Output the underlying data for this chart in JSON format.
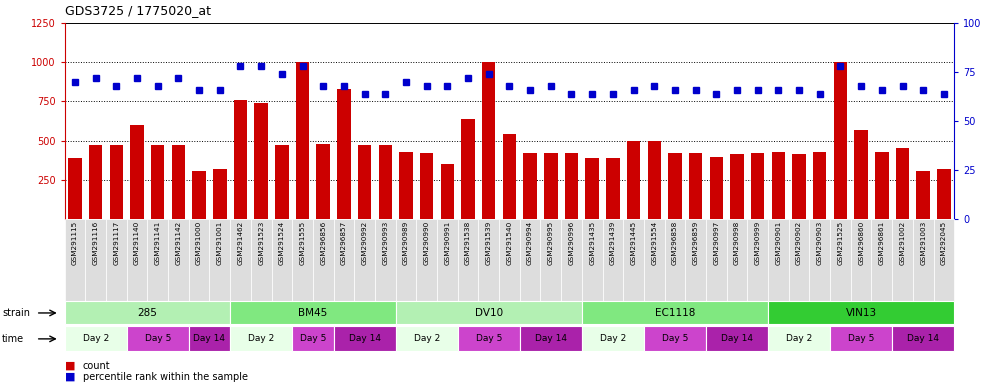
{
  "title": "GDS3725 / 1775020_at",
  "samples": [
    "GSM291115",
    "GSM291116",
    "GSM291117",
    "GSM291140",
    "GSM291141",
    "GSM291142",
    "GSM291000",
    "GSM291001",
    "GSM291462",
    "GSM291523",
    "GSM291524",
    "GSM291555",
    "GSM296856",
    "GSM296857",
    "GSM290992",
    "GSM290993",
    "GSM290989",
    "GSM290990",
    "GSM290991",
    "GSM291538",
    "GSM291539",
    "GSM291540",
    "GSM290994",
    "GSM290995",
    "GSM290996",
    "GSM291435",
    "GSM291439",
    "GSM291445",
    "GSM291554",
    "GSM296858",
    "GSM296859",
    "GSM290997",
    "GSM290998",
    "GSM290999",
    "GSM290901",
    "GSM290902",
    "GSM290903",
    "GSM291525",
    "GSM296860",
    "GSM296861",
    "GSM291002",
    "GSM291003",
    "GSM292045"
  ],
  "bar_values": [
    390,
    470,
    470,
    600,
    470,
    470,
    305,
    320,
    760,
    740,
    470,
    1000,
    480,
    830,
    470,
    470,
    430,
    420,
    350,
    640,
    1000,
    540,
    420,
    420,
    420,
    390,
    390,
    500,
    500,
    420,
    420,
    395,
    415,
    420,
    430,
    415,
    425,
    1000,
    570,
    430,
    455,
    305,
    320
  ],
  "dot_values": [
    70,
    72,
    68,
    72,
    68,
    72,
    66,
    66,
    78,
    78,
    74,
    78,
    68,
    68,
    64,
    64,
    70,
    68,
    68,
    72,
    74,
    68,
    66,
    68,
    64,
    64,
    64,
    66,
    68,
    66,
    66,
    64,
    66,
    66,
    66,
    66,
    64,
    78,
    68,
    66,
    68,
    66,
    64
  ],
  "strains": [
    {
      "label": "285",
      "start": 0,
      "end": 8,
      "color": "#b3f0b3"
    },
    {
      "label": "BM45",
      "start": 8,
      "end": 16,
      "color": "#80e880"
    },
    {
      "label": "DV10",
      "start": 16,
      "end": 25,
      "color": "#b3f0b3"
    },
    {
      "label": "EC1118",
      "start": 25,
      "end": 34,
      "color": "#80e880"
    },
    {
      "label": "VIN13",
      "start": 34,
      "end": 43,
      "color": "#33cc33"
    }
  ],
  "times": [
    {
      "label": "Day 2",
      "start": 0,
      "end": 3,
      "color": "#e8ffe8"
    },
    {
      "label": "Day 5",
      "start": 3,
      "end": 6,
      "color": "#cc44cc"
    },
    {
      "label": "Day 14",
      "start": 6,
      "end": 8,
      "color": "#aa22aa"
    },
    {
      "label": "Day 2",
      "start": 8,
      "end": 11,
      "color": "#e8ffe8"
    },
    {
      "label": "Day 5",
      "start": 11,
      "end": 13,
      "color": "#cc44cc"
    },
    {
      "label": "Day 14",
      "start": 13,
      "end": 16,
      "color": "#aa22aa"
    },
    {
      "label": "Day 2",
      "start": 16,
      "end": 19,
      "color": "#e8ffe8"
    },
    {
      "label": "Day 5",
      "start": 19,
      "end": 22,
      "color": "#cc44cc"
    },
    {
      "label": "Day 14",
      "start": 22,
      "end": 25,
      "color": "#aa22aa"
    },
    {
      "label": "Day 2",
      "start": 25,
      "end": 28,
      "color": "#e8ffe8"
    },
    {
      "label": "Day 5",
      "start": 28,
      "end": 31,
      "color": "#cc44cc"
    },
    {
      "label": "Day 14",
      "start": 31,
      "end": 34,
      "color": "#aa22aa"
    },
    {
      "label": "Day 2",
      "start": 34,
      "end": 37,
      "color": "#e8ffe8"
    },
    {
      "label": "Day 5",
      "start": 37,
      "end": 40,
      "color": "#cc44cc"
    },
    {
      "label": "Day 14",
      "start": 40,
      "end": 43,
      "color": "#aa22aa"
    }
  ],
  "bar_color": "#cc0000",
  "dot_color": "#0000cc",
  "ylim_left": [
    0,
    1250
  ],
  "ylim_right": [
    0,
    100
  ],
  "yticks_left": [
    250,
    500,
    750,
    1000,
    1250
  ],
  "yticks_right": [
    0,
    25,
    50,
    75,
    100
  ],
  "bg_color": "#ffffff",
  "axis_color_left": "#cc0000",
  "axis_color_right": "#0000cc",
  "fig_w": 9.94,
  "fig_h": 3.84,
  "dpi": 100
}
